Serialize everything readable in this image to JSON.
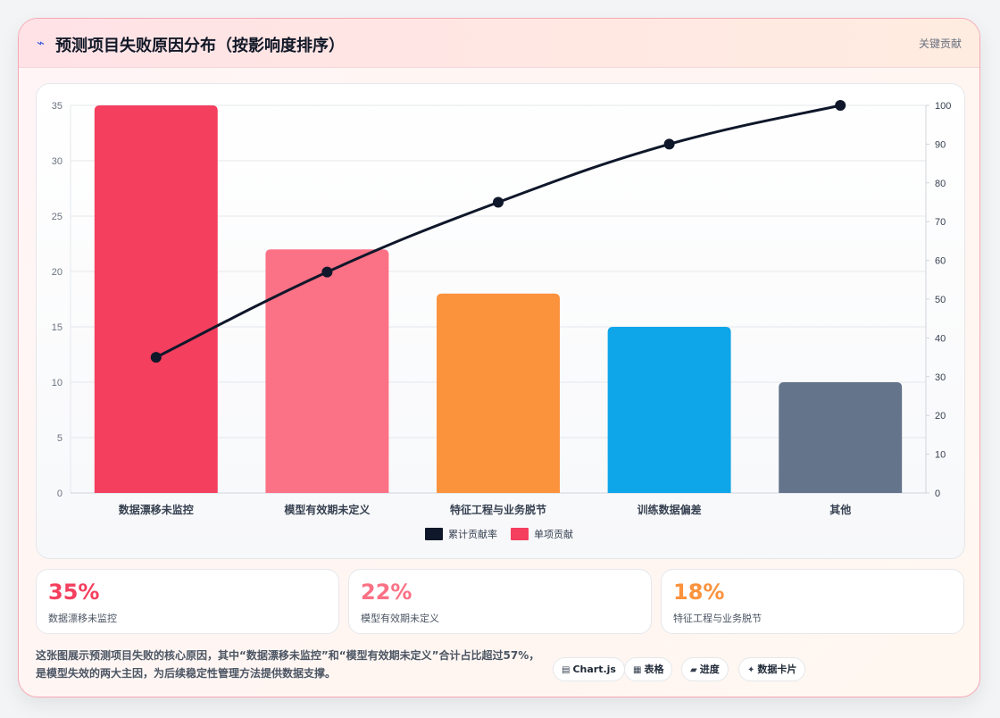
{
  "header": {
    "icon": "chart-icon",
    "title": "预测项目失败原因分布（按影响度排序）",
    "tag": "关键贡献"
  },
  "chart_data": {
    "type": "bar",
    "categories": [
      "数据漂移未监控",
      "模型有效期未定义",
      "特征工程与业务脱节",
      "训练数据偏差",
      "其他"
    ],
    "series": [
      {
        "name": "单项贡献",
        "type": "bar",
        "values": [
          35,
          22,
          18,
          15,
          10
        ],
        "colors": [
          "#f43f5e",
          "#fb7185",
          "#fb923c",
          "#0ea5e9",
          "#64748b"
        ]
      },
      {
        "name": "累计贡献率",
        "type": "line",
        "values": [
          35,
          57,
          75,
          90,
          100
        ],
        "color": "#0f172a"
      }
    ],
    "y_left": {
      "min": 0,
      "max": 35,
      "ticks": [
        0,
        5,
        10,
        15,
        20,
        25,
        30,
        35
      ]
    },
    "y_right": {
      "min": 0,
      "max": 100,
      "ticks": [
        0,
        10,
        20,
        30,
        40,
        50,
        60,
        70,
        80,
        90,
        100
      ]
    },
    "legend": {
      "position": "bottom",
      "items": [
        {
          "label": "累计贡献率",
          "color": "#0f172a"
        },
        {
          "label": "单项贡献",
          "color": "#f43f5e"
        }
      ]
    },
    "grid": true
  },
  "stats": [
    {
      "value": "35%",
      "label": "数据漂移未监控",
      "color": "#f43f5e"
    },
    {
      "value": "22%",
      "label": "模型有效期未定义",
      "color": "#fb7185"
    },
    {
      "value": "18%",
      "label": "特征工程与业务脱节",
      "color": "#fb923c"
    }
  ],
  "description": "这张图展示预测项目失败的核心原因，其中“数据漂移未监控”和“模型有效期未定义”合计占比超过57%，是模型失效的两大主因，为后续稳定性管理方法提供数据支撑。",
  "chips": [
    {
      "icon": "▤",
      "label": "Chart.js"
    },
    {
      "icon": "▦",
      "label": "表格"
    },
    {
      "icon": "▰",
      "label": "进度"
    },
    {
      "icon": "✦",
      "label": "数据卡片"
    }
  ]
}
